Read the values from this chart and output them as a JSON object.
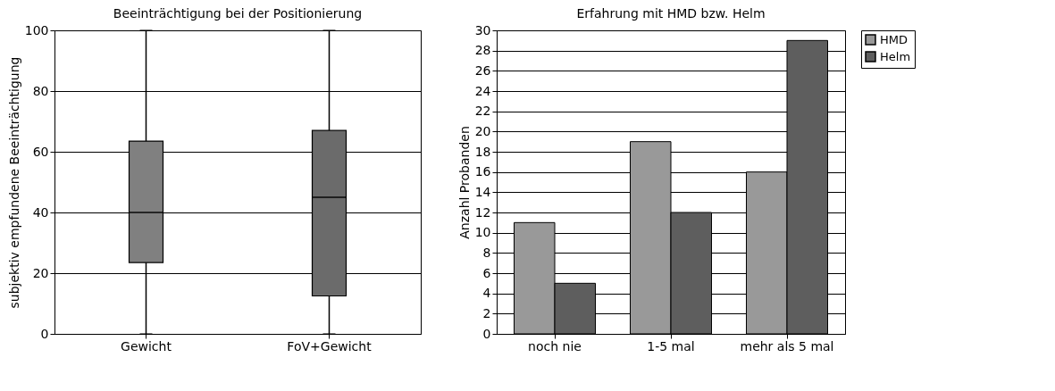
{
  "chart_data": [
    {
      "type": "box",
      "title": "Beeinträchtigung bei der Positionierung",
      "ylabel": "subjektiv empfundene Beeinträchtigung",
      "categories": [
        "Gewicht",
        "FoV+Gewicht"
      ],
      "boxes": [
        {
          "low": 0,
          "q1": 23.5,
          "median": 40,
          "q3": 63.5,
          "high": 100
        },
        {
          "low": 0,
          "q1": 12.5,
          "median": 45,
          "q3": 67,
          "high": 100
        }
      ],
      "colors": [
        "#808080",
        "#6b6b6b"
      ],
      "ylim": [
        0,
        100
      ],
      "yticks": [
        0,
        20,
        40,
        60,
        80,
        100
      ],
      "grid": "y"
    },
    {
      "type": "bar",
      "title": "Erfahrung mit HMD bzw. Helm",
      "ylabel": "Anzahl Probanden",
      "categories": [
        "noch nie",
        "1-5 mal",
        "mehr als 5 mal"
      ],
      "series": [
        {
          "name": "HMD",
          "color": "#999999",
          "values": [
            11,
            19,
            16
          ]
        },
        {
          "name": "Helm",
          "color": "#5e5e5e",
          "values": [
            5,
            12,
            29
          ]
        }
      ],
      "ylim": [
        0,
        30
      ],
      "yticks": [
        0,
        2,
        4,
        6,
        8,
        10,
        12,
        14,
        16,
        18,
        20,
        22,
        24,
        26,
        28,
        30
      ],
      "grid": "y",
      "legend": "right"
    }
  ]
}
